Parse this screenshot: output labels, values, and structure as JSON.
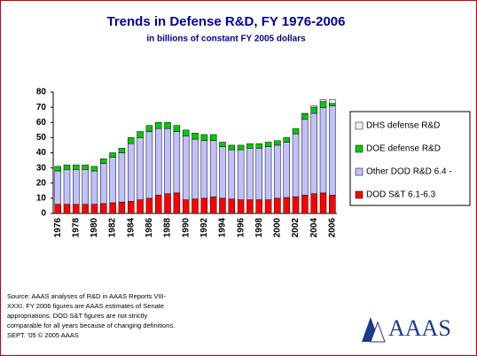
{
  "chart_data": {
    "type": "stacked-bar",
    "title": "Trends in Defense R&D, FY 1976-2006",
    "subtitle": "in billions of constant FY 2005 dollars",
    "categories": [
      "1976",
      null,
      "1978",
      null,
      "1980",
      null,
      "1982",
      null,
      "1984",
      null,
      "1986",
      null,
      "1988",
      null,
      "1990",
      null,
      "1992",
      null,
      "1994",
      null,
      "1996",
      null,
      "1998",
      null,
      "2000",
      null,
      "2002",
      null,
      "2004",
      null,
      "2006"
    ],
    "series": [
      {
        "name": "DOD S&T 6.1-6.3",
        "color": "#ff0000",
        "values": [
          6,
          6,
          6,
          6,
          6,
          6.5,
          7,
          7.5,
          8,
          9,
          10,
          12,
          13,
          13.5,
          9,
          9.5,
          10,
          11,
          10,
          9.5,
          9,
          9,
          9,
          9,
          10,
          10.5,
          11,
          12,
          13,
          13.5,
          12
        ]
      },
      {
        "name": "Other DOD R&D 6.4 -",
        "color": "#c0c0ff",
        "values": [
          22,
          23,
          23,
          23,
          22,
          26.5,
          30,
          32.5,
          38,
          41,
          44,
          44,
          43,
          40.5,
          42,
          39.5,
          38,
          37,
          34,
          32.5,
          33,
          34,
          34,
          35,
          35,
          36.5,
          41.5,
          50,
          53,
          56.3,
          59
        ]
      },
      {
        "name": "DOE defense R&D",
        "color": "#00cc00",
        "values": [
          3,
          3,
          3,
          3,
          3,
          3,
          3,
          3,
          4,
          4,
          4,
          4,
          4,
          4,
          4,
          4,
          4,
          4,
          3,
          3,
          3,
          3,
          3,
          3,
          3,
          3,
          3.5,
          3.5,
          4,
          4,
          1.5
        ]
      },
      {
        "name": "DHS defense R&D",
        "color": "#eeeeff",
        "values": [
          0,
          0,
          0,
          0,
          0,
          0,
          0,
          0,
          0,
          0,
          0,
          0,
          0,
          0,
          0,
          0,
          0,
          0,
          0,
          0,
          0,
          0,
          0,
          0,
          0,
          0,
          0,
          0.5,
          1,
          1.2,
          2.5
        ]
      }
    ],
    "ylim": [
      0,
      80
    ],
    "yticks": [
      0,
      10,
      20,
      30,
      40,
      50,
      60,
      70,
      80
    ],
    "grid": false,
    "legend": "right",
    "source": [
      "Source: AAAS analyses of R&D in AAAS Reports VIII-",
      "XXXI.  FY 2006 figures are AAAS estimates of Senate",
      "appropriations. DOD S&T figures are not strictly",
      "comparable for all years because of changing definitions.",
      "SEPT. '05 © 2005 AAAS"
    ],
    "logo": "AAAS"
  }
}
